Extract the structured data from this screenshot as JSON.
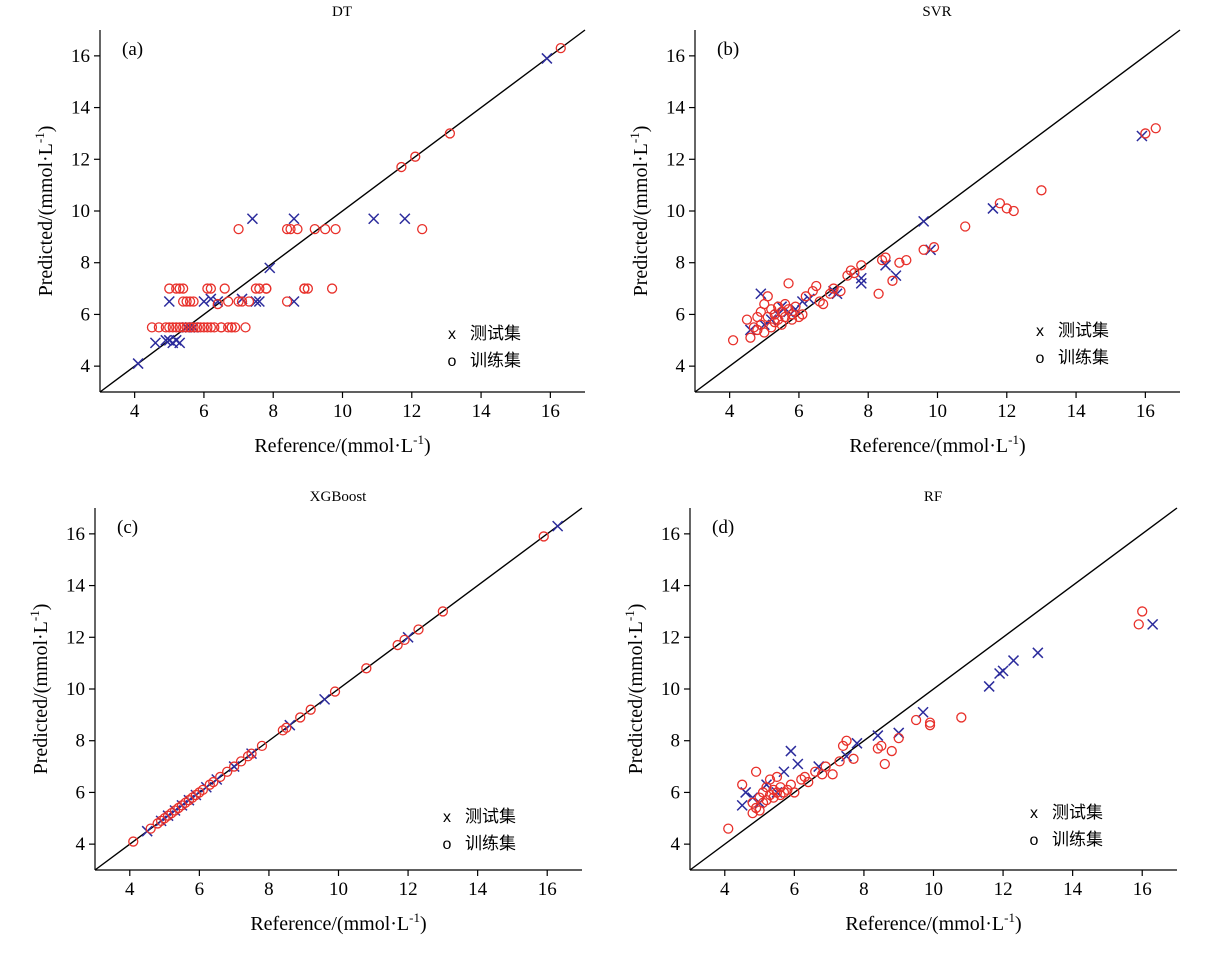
{
  "figure": {
    "colors": {
      "test": "#2b2b9c",
      "train": "#e8302a",
      "axis": "#000000"
    },
    "x_label_prefix": "Reference/(mmol·L",
    "y_label_prefix": "Predicted/(mmol·L",
    "unit_exp": "-1",
    "unit_close": ")"
  },
  "chart_data": [
    {
      "type": "scatter",
      "title": "DT",
      "label": "(a)",
      "xlim": [
        3,
        17
      ],
      "ylim": [
        3,
        17
      ],
      "xticks": [
        4,
        6,
        8,
        10,
        12,
        14,
        16
      ],
      "yticks": [
        4,
        6,
        8,
        10,
        12,
        14,
        16
      ],
      "xlabel": "Reference/(mmol·L-1)",
      "ylabel": "Predicted/(mmol·L-1)",
      "identity_line": true,
      "legend": [
        "测试集",
        "训练集"
      ],
      "series": [
        {
          "name": "测试集",
          "marker": "x",
          "x": [
            4.1,
            4.6,
            4.9,
            5.0,
            5.1,
            5.2,
            5.3,
            5.5,
            5.6,
            5.7,
            5.0,
            6.0,
            6.2,
            6.4,
            7.1,
            7.4,
            7.5,
            7.6,
            7.9,
            8.6,
            8.6,
            10.9,
            11.8,
            15.9
          ],
          "y": [
            4.1,
            4.9,
            5.0,
            5.0,
            4.9,
            5.0,
            4.9,
            5.5,
            5.5,
            5.5,
            6.5,
            6.5,
            6.6,
            6.5,
            6.6,
            9.7,
            6.5,
            6.5,
            7.8,
            9.7,
            6.5,
            9.7,
            9.7,
            15.9
          ]
        },
        {
          "name": "训练集",
          "marker": "o",
          "x": [
            4.5,
            4.7,
            4.9,
            5.0,
            5.1,
            5.2,
            5.3,
            5.4,
            5.5,
            5.6,
            5.7,
            5.8,
            5.9,
            6.0,
            6.1,
            6.2,
            6.3,
            5.0,
            5.2,
            5.3,
            5.4,
            5.5,
            5.4,
            5.6,
            5.7,
            6.1,
            6.2,
            6.4,
            6.5,
            6.5,
            6.6,
            6.7,
            6.8,
            6.9,
            7.2,
            6.7,
            6.8,
            7.0,
            7.1,
            7.3,
            7.5,
            7.6,
            7.8,
            7.8,
            8.4,
            7.0,
            8.4,
            8.5,
            8.7,
            8.9,
            9.2,
            9.5,
            9.8,
            9.0,
            8.9,
            9.7,
            12.3,
            11.7,
            12.1,
            13.1,
            16.3
          ],
          "y": [
            5.5,
            5.5,
            5.5,
            5.5,
            5.5,
            5.5,
            5.5,
            5.5,
            5.5,
            5.5,
            5.5,
            5.5,
            5.5,
            5.5,
            5.5,
            5.5,
            5.5,
            7.0,
            7.0,
            7.0,
            6.5,
            6.5,
            7.0,
            6.5,
            6.5,
            7.0,
            7.0,
            6.4,
            5.5,
            5.5,
            7.0,
            6.5,
            5.5,
            5.5,
            5.5,
            5.5,
            5.5,
            6.5,
            6.5,
            6.5,
            7.0,
            7.0,
            7.0,
            7.0,
            6.5,
            9.3,
            9.3,
            9.3,
            9.3,
            7.0,
            9.3,
            9.3,
            9.3,
            7.0,
            7.0,
            7.0,
            9.3,
            11.7,
            12.1,
            13.0,
            16.3
          ]
        }
      ]
    },
    {
      "type": "scatter",
      "title": "SVR",
      "label": "(b)",
      "xlim": [
        3,
        17
      ],
      "ylim": [
        3,
        17
      ],
      "xticks": [
        4,
        6,
        8,
        10,
        12,
        14,
        16
      ],
      "yticks": [
        4,
        6,
        8,
        10,
        12,
        14,
        16
      ],
      "xlabel": "Reference/(mmol·L-1)",
      "ylabel": "Predicted/(mmol·L-1)",
      "identity_line": true,
      "legend": [
        "测试集",
        "训练集"
      ],
      "series": [
        {
          "name": "测试集",
          "marker": "x",
          "x": [
            4.6,
            4.9,
            5.0,
            5.2,
            5.4,
            5.5,
            5.7,
            5.9,
            6.1,
            6.3,
            7.0,
            7.1,
            7.8,
            7.8,
            8.5,
            8.8,
            9.6,
            9.8,
            11.6,
            15.9
          ],
          "y": [
            5.4,
            6.8,
            5.6,
            5.8,
            6.0,
            6.3,
            6.1,
            6.2,
            6.5,
            6.6,
            6.9,
            6.8,
            7.2,
            7.4,
            7.9,
            7.5,
            9.6,
            8.5,
            10.1,
            12.9
          ]
        },
        {
          "name": "训练集",
          "marker": "o",
          "x": [
            4.1,
            4.5,
            4.6,
            4.7,
            4.8,
            4.8,
            4.9,
            4.9,
            5.0,
            5.0,
            5.1,
            5.1,
            5.2,
            5.2,
            5.3,
            5.3,
            5.4,
            5.4,
            5.5,
            5.5,
            5.6,
            5.6,
            5.7,
            5.7,
            5.8,
            5.8,
            5.9,
            6.0,
            6.1,
            6.2,
            6.4,
            6.5,
            6.6,
            6.7,
            6.9,
            7.0,
            7.2,
            7.4,
            7.5,
            7.6,
            7.8,
            8.3,
            8.4,
            8.5,
            8.7,
            8.9,
            9.1,
            9.6,
            9.9,
            10.8,
            11.8,
            12.0,
            12.2,
            13.0,
            16.0,
            16.3
          ],
          "y": [
            5.0,
            5.8,
            5.1,
            5.5,
            5.9,
            5.4,
            6.1,
            5.6,
            6.4,
            5.3,
            5.9,
            6.7,
            5.5,
            6.2,
            6.0,
            5.7,
            6.3,
            5.8,
            6.1,
            5.6,
            6.4,
            5.9,
            6.2,
            7.2,
            5.8,
            6.0,
            6.3,
            5.9,
            6.0,
            6.7,
            6.9,
            7.1,
            6.5,
            6.4,
            6.8,
            7.0,
            6.9,
            7.5,
            7.7,
            7.6,
            7.9,
            6.8,
            8.1,
            8.2,
            7.3,
            8.0,
            8.1,
            8.5,
            8.6,
            9.4,
            10.3,
            10.1,
            10.0,
            10.8,
            13.0,
            13.2
          ]
        }
      ]
    },
    {
      "type": "scatter",
      "title": "XGBoost",
      "label": "(c)",
      "xlim": [
        3,
        17
      ],
      "ylim": [
        3,
        17
      ],
      "xticks": [
        4,
        6,
        8,
        10,
        12,
        14,
        16
      ],
      "yticks": [
        4,
        6,
        8,
        10,
        12,
        14,
        16
      ],
      "xlabel": "Reference/(mmol·L-1)",
      "ylabel": "Predicted/(mmol·L-1)",
      "identity_line": true,
      "legend": [
        "测试集",
        "训练集"
      ],
      "series": [
        {
          "name": "测试集",
          "marker": "x",
          "x": [
            4.5,
            4.9,
            5.1,
            5.3,
            5.5,
            5.7,
            5.9,
            6.2,
            6.5,
            7.0,
            7.5,
            8.6,
            9.6,
            12.0,
            16.3
          ],
          "y": [
            4.5,
            4.9,
            5.1,
            5.3,
            5.5,
            5.7,
            5.9,
            6.2,
            6.5,
            7.0,
            7.5,
            8.6,
            9.6,
            12.0,
            16.3
          ]
        },
        {
          "name": "训练集",
          "marker": "o",
          "x": [
            4.1,
            4.6,
            4.8,
            4.9,
            5.0,
            5.1,
            5.2,
            5.3,
            5.4,
            5.5,
            5.6,
            5.7,
            5.8,
            5.9,
            6.0,
            6.1,
            6.3,
            6.4,
            6.6,
            6.8,
            7.0,
            7.2,
            7.4,
            7.5,
            7.8,
            8.4,
            8.5,
            8.9,
            9.2,
            9.9,
            10.8,
            11.7,
            11.9,
            12.3,
            13.0,
            15.9
          ],
          "y": [
            4.1,
            4.6,
            4.8,
            4.9,
            5.0,
            5.1,
            5.2,
            5.3,
            5.4,
            5.5,
            5.6,
            5.7,
            5.8,
            5.9,
            6.0,
            6.1,
            6.3,
            6.4,
            6.6,
            6.8,
            7.0,
            7.2,
            7.4,
            7.5,
            7.8,
            8.4,
            8.5,
            8.9,
            9.2,
            9.9,
            10.8,
            11.7,
            11.9,
            12.3,
            13.0,
            15.9
          ]
        }
      ]
    },
    {
      "type": "scatter",
      "title": "RF",
      "label": "(d)",
      "xlim": [
        3,
        17
      ],
      "ylim": [
        3,
        17
      ],
      "xticks": [
        4,
        6,
        8,
        10,
        12,
        14,
        16
      ],
      "yticks": [
        4,
        6,
        8,
        10,
        12,
        14,
        16
      ],
      "xlabel": "Reference/(mmol·L-1)",
      "ylabel": "Predicted/(mmol·L-1)",
      "identity_line": true,
      "legend": [
        "测试集",
        "训练集"
      ],
      "series": [
        {
          "name": "测试集",
          "marker": "x",
          "x": [
            4.5,
            4.6,
            4.8,
            5.0,
            5.2,
            5.5,
            5.7,
            5.9,
            6.1,
            6.7,
            7.5,
            7.8,
            8.4,
            9.0,
            9.7,
            11.6,
            11.9,
            12.0,
            12.3,
            13.0,
            16.3
          ],
          "y": [
            5.5,
            6.0,
            5.8,
            5.6,
            6.3,
            6.0,
            6.8,
            7.6,
            7.1,
            7.0,
            7.4,
            7.9,
            8.2,
            8.3,
            9.1,
            10.1,
            10.6,
            10.7,
            11.1,
            11.4,
            12.5
          ]
        },
        {
          "name": "训练集",
          "marker": "o",
          "x": [
            4.1,
            4.5,
            4.8,
            4.8,
            4.9,
            4.9,
            5.0,
            5.0,
            5.1,
            5.1,
            5.2,
            5.2,
            5.3,
            5.3,
            5.4,
            5.4,
            5.5,
            5.5,
            5.6,
            5.6,
            5.7,
            5.8,
            5.9,
            6.0,
            6.2,
            6.3,
            6.4,
            6.6,
            6.8,
            6.9,
            7.1,
            7.3,
            7.4,
            7.5,
            7.7,
            8.4,
            8.5,
            8.6,
            8.8,
            9.0,
            9.5,
            9.9,
            9.9,
            10.8,
            15.9,
            16.0
          ],
          "y": [
            4.6,
            6.3,
            5.2,
            5.6,
            6.8,
            5.4,
            5.8,
            5.3,
            6.0,
            5.6,
            6.2,
            5.7,
            5.9,
            6.5,
            6.1,
            5.8,
            6.6,
            6.0,
            6.2,
            5.9,
            6.0,
            6.1,
            6.3,
            6.0,
            6.5,
            6.6,
            6.4,
            6.8,
            6.7,
            7.0,
            6.7,
            7.2,
            7.8,
            8.0,
            7.3,
            7.7,
            7.8,
            7.1,
            7.6,
            8.1,
            8.8,
            8.6,
            8.7,
            8.9,
            12.5,
            13.0
          ]
        }
      ]
    }
  ]
}
